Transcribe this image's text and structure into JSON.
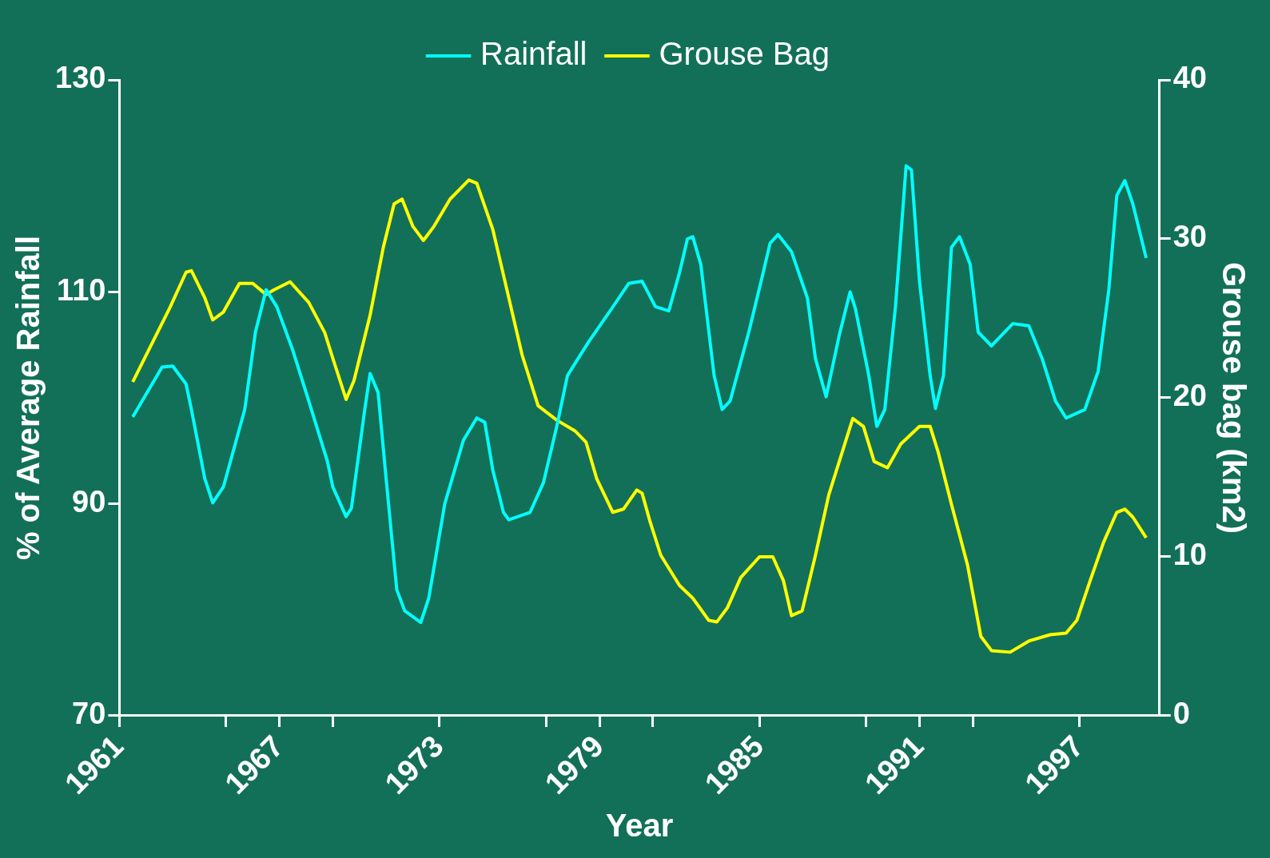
{
  "chart_data": {
    "type": "line",
    "xlabel": "Year",
    "ylabel": "% of Average Rainfall",
    "y2label": "Grouse bag (km2)",
    "xlim": [
      1961,
      2000
    ],
    "xticks": [
      1961,
      {
        "value": 1965,
        "label": null
      },
      1967,
      {
        "value": 1969,
        "label": null
      },
      1973,
      {
        "value": 1977,
        "label": null
      },
      1979,
      {
        "value": 1981,
        "label": null
      },
      1985,
      {
        "value": 1989,
        "label": null
      },
      1991,
      {
        "value": 1993,
        "label": null
      },
      1997
    ],
    "ylim": [
      70,
      130
    ],
    "yticks": [
      70,
      90,
      110,
      130
    ],
    "y2lim": [
      0,
      40
    ],
    "y2ticks": [
      0,
      10,
      20,
      30,
      40
    ],
    "legend": "top",
    "marker": "none",
    "line_style": "solid",
    "series": [
      {
        "name": "Rainfall",
        "color": "#00ffff",
        "x": [
          1961.5,
          1962.6,
          1963.0,
          1963.5,
          1963.7,
          1964.2,
          1964.5,
          1964.9,
          1965.7,
          1966.1,
          1966.5,
          1966.9,
          1967.5,
          1968.1,
          1968.8,
          1969.0,
          1969.5,
          1969.7,
          1970.2,
          1970.4,
          1970.7,
          1971.0,
          1971.4,
          1971.7,
          1972.3,
          1972.6,
          1973.2,
          1973.9,
          1974.4,
          1974.7,
          1975.0,
          1975.4,
          1975.6,
          1976.4,
          1976.9,
          1977.4,
          1977.8,
          1978.6,
          1979.4,
          1980.1,
          1980.6,
          1981.1,
          1981.6,
          1982.0,
          1982.3,
          1982.5,
          1982.8,
          1983.3,
          1983.6,
          1983.9,
          1984.6,
          1985.1,
          1985.4,
          1985.7,
          1986.2,
          1986.8,
          1987.1,
          1987.5,
          1988.0,
          1988.4,
          1988.6,
          1989.1,
          1989.4,
          1989.7,
          1990.1,
          1990.5,
          1990.7,
          1991.0,
          1991.4,
          1991.6,
          1991.9,
          1992.2,
          1992.5,
          1992.9,
          1993.2,
          1993.7,
          1994.5,
          1995.1,
          1995.6,
          1996.1,
          1996.5,
          1997.2,
          1997.7,
          1998.1,
          1998.4,
          1998.7,
          1999.0,
          1999.5
        ],
        "values": [
          98.2,
          102.9,
          103.0,
          101.3,
          98.9,
          92.4,
          90.1,
          91.6,
          98.9,
          106.2,
          110.2,
          108.6,
          104.5,
          99.7,
          94.0,
          91.6,
          88.8,
          89.6,
          98.9,
          102.3,
          100.5,
          92.4,
          81.9,
          79.9,
          78.8,
          81.1,
          90.0,
          96.0,
          98.1,
          97.7,
          93.2,
          89.2,
          88.5,
          89.2,
          92.0,
          97.3,
          102.1,
          105.3,
          108.2,
          110.8,
          111.0,
          108.6,
          108.2,
          111.8,
          115.0,
          115.2,
          112.6,
          102.1,
          98.9,
          99.7,
          106.2,
          111.4,
          114.6,
          115.4,
          113.8,
          109.4,
          103.7,
          100.1,
          106.0,
          110.0,
          108.4,
          102.1,
          97.3,
          98.9,
          108.6,
          121.9,
          121.5,
          111.0,
          102.1,
          99.0,
          102.1,
          114.2,
          115.2,
          112.6,
          106.2,
          104.9,
          107.0,
          106.8,
          103.7,
          99.7,
          98.1,
          98.9,
          102.5,
          110.2,
          119.1,
          120.5,
          118.3,
          113.2
        ]
      },
      {
        "name": "Grouse Bag",
        "color": "#ffff00",
        "axis": "y2",
        "x": [
          1961.5,
          1962.9,
          1963.5,
          1963.7,
          1964.2,
          1964.5,
          1964.9,
          1965.5,
          1966.0,
          1966.5,
          1966.8,
          1967.4,
          1968.1,
          1968.7,
          1969.0,
          1969.5,
          1969.8,
          1970.4,
          1970.9,
          1971.3,
          1971.6,
          1972.0,
          1972.4,
          1972.8,
          1973.4,
          1974.1,
          1974.4,
          1975.0,
          1975.6,
          1976.1,
          1976.7,
          1977.4,
          1978.1,
          1978.5,
          1978.9,
          1979.5,
          1979.9,
          1980.4,
          1980.6,
          1980.9,
          1981.3,
          1982.0,
          1982.5,
          1983.1,
          1983.4,
          1983.8,
          1984.3,
          1985.0,
          1985.5,
          1985.9,
          1986.2,
          1986.6,
          1987.1,
          1987.6,
          1988.2,
          1988.5,
          1988.9,
          1989.3,
          1989.8,
          1990.3,
          1991.0,
          1991.4,
          1991.7,
          1992.2,
          1992.8,
          1993.3,
          1993.7,
          1994.4,
          1995.1,
          1995.9,
          1996.5,
          1996.9,
          1997.4,
          1997.9,
          1998.4,
          1998.7,
          1999.0,
          1999.5
        ],
        "values": [
          21.0,
          25.7,
          27.9,
          28.0,
          26.3,
          24.9,
          25.4,
          27.2,
          27.2,
          26.5,
          26.8,
          27.3,
          26.0,
          24.1,
          22.5,
          19.9,
          21.1,
          25.2,
          29.5,
          32.2,
          32.5,
          30.8,
          29.9,
          30.8,
          32.5,
          33.7,
          33.5,
          30.6,
          26.3,
          22.7,
          19.5,
          18.6,
          17.9,
          17.2,
          14.9,
          12.8,
          13.0,
          14.2,
          14.0,
          12.2,
          10.1,
          8.2,
          7.4,
          6.0,
          5.9,
          6.8,
          8.7,
          10.0,
          10.0,
          8.5,
          6.3,
          6.6,
          10.1,
          13.9,
          17.1,
          18.7,
          18.2,
          16.0,
          15.6,
          17.1,
          18.2,
          18.2,
          16.6,
          13.3,
          9.5,
          5.0,
          4.1,
          4.0,
          4.7,
          5.1,
          5.2,
          6.0,
          8.5,
          10.9,
          12.8,
          13.0,
          12.5,
          11.2
        ]
      }
    ]
  }
}
